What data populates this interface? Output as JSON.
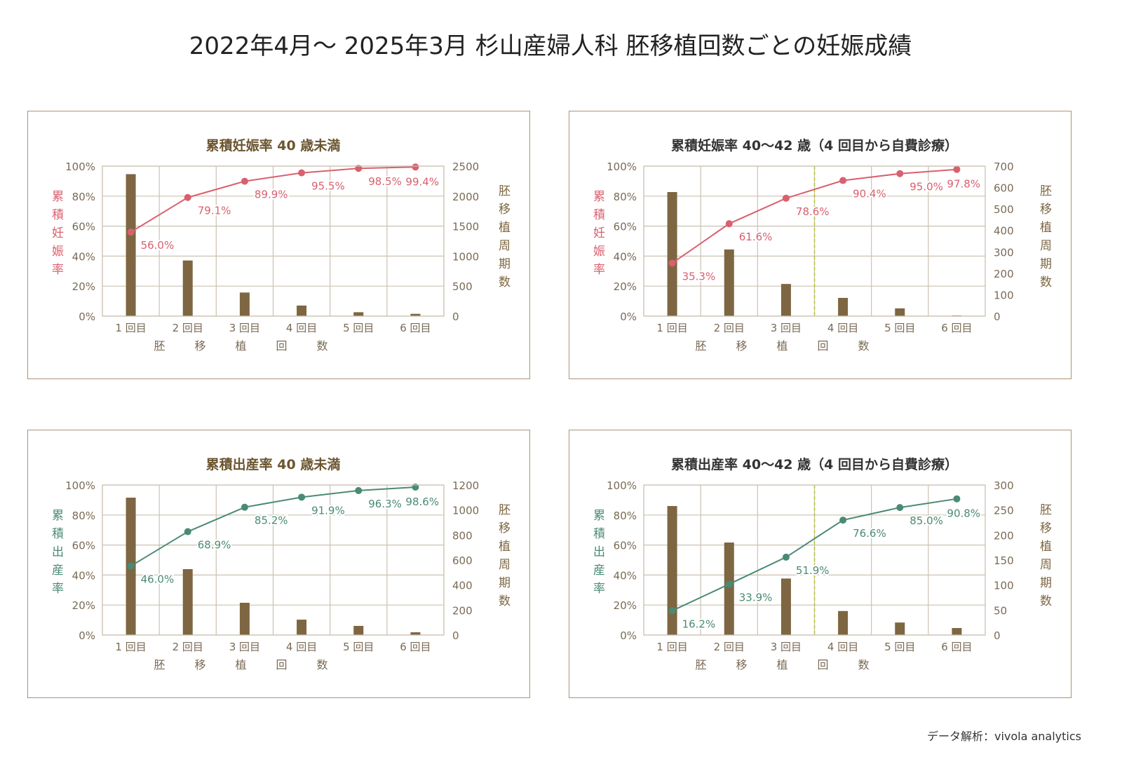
{
  "title": "2022年4月〜 2025年3月 杉山産婦人科 胚移植回数ごとの妊娠成績",
  "credit": "データ解析：vivola analytics",
  "colors": {
    "bar": "#7d6641",
    "pregnancy_line": "#d9606e",
    "birth_line": "#4a8a74",
    "grid": "#cbc2b2",
    "frame": "#a89478",
    "divider": "#b5c43a",
    "tick": "#7a6a55"
  },
  "chart_data": [
    {
      "type": "bar+line",
      "title": "累積妊娠率 40 歳未満",
      "title_color": "#6b5530",
      "categories": [
        "1 回目",
        "2 回目",
        "3 回目",
        "4 回目",
        "5 回目",
        "6 回目"
      ],
      "xlabel": "胚移植回数",
      "ylabel_left": "累積妊娠率",
      "ylabel_right": "胚移植周期数",
      "yleft_ticks": [
        "0%",
        "20%",
        "40%",
        "60%",
        "80%",
        "100%"
      ],
      "yleft_lim": [
        0,
        100
      ],
      "yright_ticks": [
        "0",
        "500",
        "1000",
        "1500",
        "2000",
        "2500"
      ],
      "yright_lim": [
        0,
        2500
      ],
      "line_values": [
        56.0,
        79.1,
        89.9,
        95.5,
        98.5,
        99.4
      ],
      "line_labels": [
        "56.0%",
        "79.1%",
        "89.9%",
        "95.5%",
        "98.5%",
        "99.4%"
      ],
      "line_color": "#d9606e",
      "bar_values": [
        2366,
        927,
        393,
        176,
        65,
        38
      ],
      "divider_after": null,
      "grid": true
    },
    {
      "type": "bar+line",
      "title": "累積妊娠率 40〜42 歳（4 回目から自費診療）",
      "title_color": "#333333",
      "categories": [
        "1 回目",
        "2 回目",
        "3 回目",
        "4 回目",
        "5 回目",
        "6 回目"
      ],
      "xlabel": "胚移植回数",
      "ylabel_left": "累積妊娠率",
      "ylabel_right": "胚移植周期数",
      "yleft_ticks": [
        "0%",
        "20%",
        "40%",
        "60%",
        "80%",
        "100%"
      ],
      "yleft_lim": [
        0,
        100
      ],
      "yright_ticks": [
        "0",
        "100",
        "200",
        "300",
        "400",
        "500",
        "600",
        "700"
      ],
      "yright_lim": [
        0,
        700
      ],
      "line_values": [
        35.3,
        61.6,
        78.6,
        90.4,
        95.0,
        97.8
      ],
      "line_labels": [
        "35.3%",
        "61.6%",
        "78.6%",
        "90.4%",
        "95.0%",
        "97.8%"
      ],
      "line_color": "#d9606e",
      "bar_values": [
        579,
        311,
        150,
        85,
        36,
        3
      ],
      "divider_after": 3,
      "grid": true
    },
    {
      "type": "bar+line",
      "title": "累積出産率 40 歳未満",
      "title_color": "#6b5530",
      "categories": [
        "1 回目",
        "2 回目",
        "3 回目",
        "4 回目",
        "5 回目",
        "6 回目"
      ],
      "xlabel": "胚移植回数",
      "ylabel_left": "累積出産率",
      "ylabel_right": "胚移植周期数",
      "yleft_ticks": [
        "0%",
        "20%",
        "40%",
        "60%",
        "80%",
        "100%"
      ],
      "yleft_lim": [
        0,
        100
      ],
      "yright_ticks": [
        "0",
        "200",
        "400",
        "600",
        "800",
        "1000",
        "1200"
      ],
      "yright_lim": [
        0,
        1200
      ],
      "line_values": [
        46.0,
        68.9,
        85.2,
        91.9,
        96.3,
        98.6
      ],
      "line_labels": [
        "46.0%",
        "68.9%",
        "85.2%",
        "91.9%",
        "96.3%",
        "98.6%"
      ],
      "line_color": "#4a8a74",
      "bar_values": [
        1099,
        527,
        258,
        123,
        73,
        22
      ],
      "divider_after": null,
      "grid": true
    },
    {
      "type": "bar+line",
      "title": "累積出産率 40〜42 歳（4 回目から自費診療）",
      "title_color": "#333333",
      "categories": [
        "1 回目",
        "2 回目",
        "3 回目",
        "4 回目",
        "5 回目",
        "6 回目"
      ],
      "xlabel": "胚移植回数",
      "ylabel_left": "累積出産率",
      "ylabel_right": "胚移植周期数",
      "yleft_ticks": [
        "0%",
        "20%",
        "40%",
        "60%",
        "80%",
        "100%"
      ],
      "yleft_lim": [
        0,
        100
      ],
      "yright_ticks": [
        "0",
        "50",
        "100",
        "150",
        "200",
        "250",
        "300"
      ],
      "yright_lim": [
        0,
        300
      ],
      "line_values": [
        16.2,
        33.9,
        51.9,
        76.6,
        85.0,
        90.8
      ],
      "line_labels": [
        "16.2%",
        "33.9%",
        "51.9%",
        "76.6%",
        "85.0%",
        "90.8%"
      ],
      "line_color": "#4a8a74",
      "bar_values": [
        258,
        185,
        113,
        48,
        25,
        14
      ],
      "divider_after": 3,
      "grid": true
    }
  ]
}
